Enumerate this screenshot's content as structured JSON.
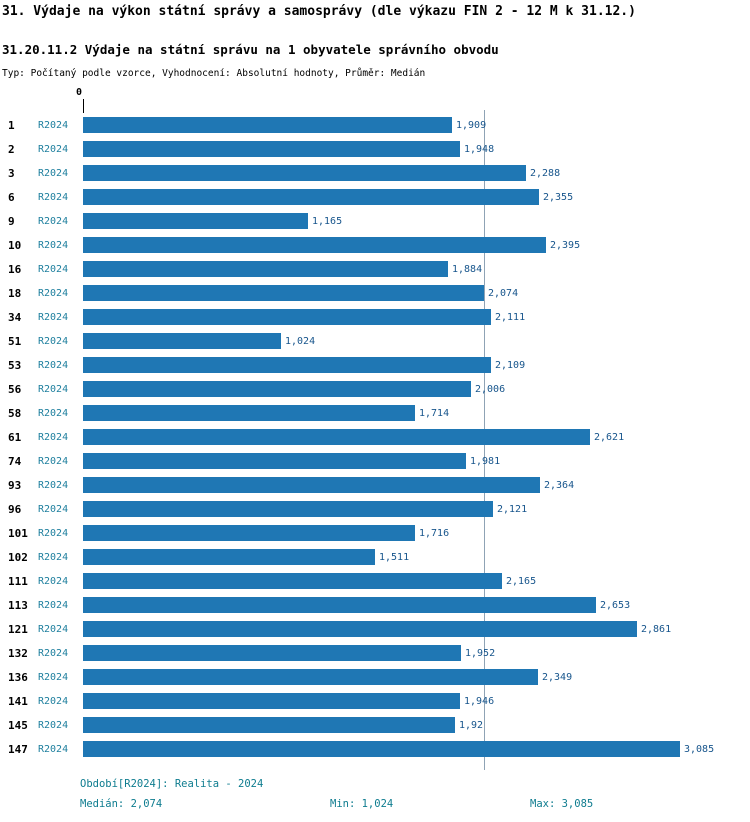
{
  "header": {
    "title": "31. Výdaje na výkon státní správy a samosprávy (dle výkazu FIN 2 - 12 M k 31.12.)",
    "subtitle": "31.20.11.2 Výdaje na státní správu na 1 obyvatele správního obvodu",
    "meta": "Typ: Počítaný podle vzorce, Vyhodnocení: Absolutní hodnoty, Průměr: Medián"
  },
  "chart_data": {
    "type": "bar",
    "orientation": "horizontal",
    "title": "31.20.11.2 Výdaje na státní správu na 1 obyvatele správního obvodu",
    "xlabel": "",
    "ylabel": "",
    "axis_zero_label": "0",
    "series_label": "R2024",
    "categories": [
      "1",
      "2",
      "3",
      "6",
      "9",
      "10",
      "16",
      "18",
      "34",
      "51",
      "53",
      "56",
      "58",
      "61",
      "74",
      "93",
      "96",
      "101",
      "102",
      "111",
      "113",
      "121",
      "132",
      "136",
      "141",
      "145",
      "147"
    ],
    "values": [
      1.909,
      1.948,
      2.288,
      2.355,
      1.165,
      2.395,
      1.884,
      2.074,
      2.111,
      1.024,
      2.109,
      2.006,
      1.714,
      2.621,
      1.981,
      2.364,
      2.121,
      1.716,
      1.511,
      2.165,
      2.653,
      2.861,
      1.952,
      2.349,
      1.946,
      1.92,
      3.085
    ],
    "value_labels": [
      "1,909",
      "1,948",
      "2,288",
      "2,355",
      "1,165",
      "2,395",
      "1,884",
      "2,074",
      "2,111",
      "1,024",
      "2,109",
      "2,006",
      "1,714",
      "2,621",
      "1,981",
      "2,364",
      "2,121",
      "1,716",
      "1,511",
      "2,165",
      "2,653",
      "2,861",
      "1,952",
      "2,349",
      "1,946",
      "1,92",
      "3,085"
    ],
    "median": 2.074,
    "min": 1.024,
    "max": 3.085,
    "xlim": [
      0,
      3.3
    ],
    "grid": false,
    "median_line": true,
    "bar_color": "#1f77b4"
  },
  "footer": {
    "period": "Období[R2024]: Realita - 2024",
    "median": "Medián: 2,074",
    "min": "Min: 1,024",
    "max": "Max: 3,085"
  }
}
